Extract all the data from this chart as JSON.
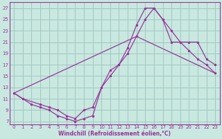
{
  "bg_color": "#c8e8e0",
  "line_color": "#993399",
  "grid_color": "#a0c8c0",
  "xlabel": "Windchill (Refroidissement éolien,°C)",
  "xlim": [
    -0.5,
    23.5
  ],
  "ylim": [
    6.5,
    28.0
  ],
  "xticks": [
    0,
    1,
    2,
    3,
    4,
    5,
    6,
    7,
    8,
    9,
    10,
    11,
    12,
    13,
    14,
    15,
    16,
    17,
    18,
    19,
    20,
    21,
    22,
    23
  ],
  "yticks": [
    7,
    9,
    11,
    13,
    15,
    17,
    19,
    21,
    23,
    25,
    27
  ],
  "curve1_x": [
    0,
    1,
    2,
    3,
    4,
    5,
    6,
    7,
    8,
    9,
    10,
    11,
    12,
    13,
    14,
    15,
    16,
    17,
    18,
    19,
    20,
    21,
    22,
    23
  ],
  "curve1_y": [
    12,
    11,
    10,
    9.5,
    9,
    8,
    7.5,
    7,
    7.5,
    8,
    13,
    16,
    17,
    20,
    24,
    27,
    27,
    25,
    21,
    21,
    21,
    21,
    18,
    17
  ],
  "curve2_x": [
    0,
    1,
    3,
    4,
    5,
    6,
    7,
    8,
    9,
    10,
    11,
    12,
    13,
    14,
    15,
    16,
    17,
    18,
    19,
    20,
    21,
    22,
    23
  ],
  "curve2_y": [
    12,
    11,
    10,
    9.5,
    9,
    8,
    7.5,
    9,
    9.5,
    13,
    15,
    17,
    19,
    22,
    25,
    27,
    25,
    23,
    21,
    19.5,
    18,
    17,
    15.5
  ],
  "curve3_x": [
    0,
    14,
    23
  ],
  "curve3_y": [
    12,
    22,
    15.5
  ]
}
